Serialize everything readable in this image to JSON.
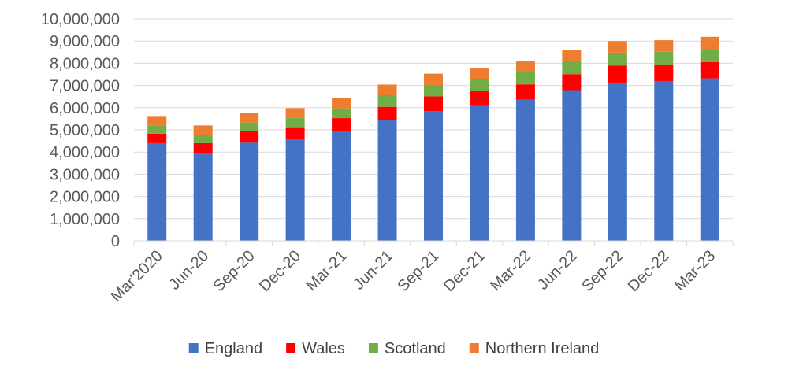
{
  "chart_data": {
    "type": "bar",
    "stacked": true,
    "title": "",
    "xlabel": "",
    "ylabel": "",
    "categories": [
      "Mar'2020",
      "Jun-20",
      "Sep-20",
      "Dec-20",
      "Mar-21",
      "Jun-21",
      "Sep-21",
      "Dec-21",
      "Mar-22",
      "Jun-22",
      "Sep-22",
      "Dec-22",
      "Mar-23"
    ],
    "ylim": [
      0,
      10000000
    ],
    "y_ticks": [
      "0",
      "1,000,000",
      "2,000,000",
      "3,000,000",
      "4,000,000",
      "5,000,000",
      "6,000,000",
      "7,000,000",
      "8,000,000",
      "9,000,000",
      "10,000,000"
    ],
    "grid": true,
    "legend_position": "bottom",
    "series": [
      {
        "name": "England",
        "color": "#4472C4",
        "values": [
          4400000,
          3950000,
          4420000,
          4600000,
          4950000,
          5430000,
          5850000,
          6070000,
          6360000,
          6790000,
          7130000,
          7200000,
          7320000
        ]
      },
      {
        "name": "Wales",
        "color": "#FF0000",
        "values": [
          430000,
          450000,
          520000,
          520000,
          580000,
          610000,
          660000,
          680000,
          690000,
          720000,
          760000,
          720000,
          730000
        ]
      },
      {
        "name": "Scotland",
        "color": "#70AD47",
        "values": [
          360000,
          380000,
          390000,
          420000,
          440000,
          520000,
          510000,
          530000,
          570000,
          580000,
          590000,
          600000,
          600000
        ]
      },
      {
        "name": "Northern Ireland",
        "color": "#ED7D31",
        "values": [
          400000,
          420000,
          430000,
          440000,
          450000,
          480000,
          510000,
          490000,
          490000,
          490000,
          520000,
          520000,
          540000
        ]
      }
    ]
  }
}
